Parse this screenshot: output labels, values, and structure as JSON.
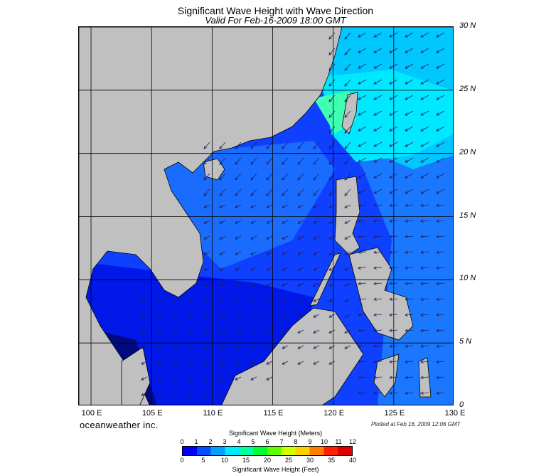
{
  "title": "Significant Wave Height with Wave Direction",
  "subtitle": "Valid For Feb-16-2009 18:00 GMT",
  "lat_labels": [
    "30 N",
    "25 N",
    "20 N",
    "15 N",
    "10 N",
    "5 N",
    "0"
  ],
  "lon_labels": [
    "100 E",
    "105 E",
    "110 E",
    "115 E",
    "120 E",
    "125 E",
    "130 E"
  ],
  "brand": "oceanweather inc.",
  "plotted_note": "Plotted at Feb 16, 2009 12:06 GMT",
  "colorbar": {
    "title_meters": "Significant Wave Height (Meters)",
    "title_feet": "Significant Wave Height (Feet)",
    "meter_ticks": [
      "0",
      "1",
      "2",
      "3",
      "4",
      "5",
      "6",
      "7",
      "8",
      "9",
      "10",
      "11",
      "12"
    ],
    "feet_ticks": [
      "0",
      "5",
      "10",
      "15",
      "20",
      "25",
      "30",
      "35",
      "40"
    ],
    "colors": [
      "#0000ff",
      "#0050ff",
      "#00a0ff",
      "#00e8ff",
      "#00ffa0",
      "#00ff30",
      "#60ff00",
      "#d0ff00",
      "#ffd000",
      "#ff8000",
      "#ff2000",
      "#e00000"
    ]
  },
  "map": {
    "extent": {
      "lon": [
        99,
        130
      ],
      "lat": [
        0,
        30
      ]
    },
    "land_color": "#c0c0c0",
    "grid_lon": [
      100,
      105,
      110,
      115,
      120,
      125,
      130
    ],
    "grid_lat": [
      0,
      5,
      10,
      15,
      20,
      25,
      30
    ]
  }
}
